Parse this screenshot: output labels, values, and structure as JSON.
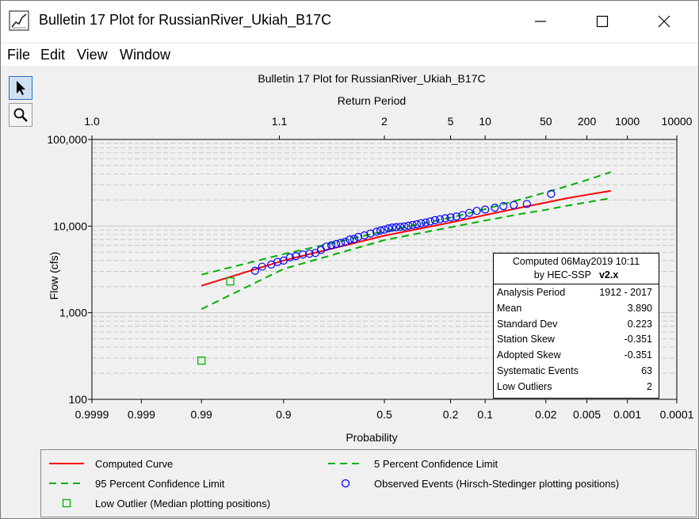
{
  "window": {
    "title": "Bulletin 17 Plot for RussianRiver_Ukiah_B17C",
    "minimize_glyph": "—",
    "maximize_glyph": "☐",
    "close_glyph": "✕"
  },
  "menu": [
    "File",
    "Edit",
    "View",
    "Window"
  ],
  "toolbar": [
    {
      "name": "pointer-tool",
      "icon": "arrow-cursor-icon",
      "active": true
    },
    {
      "name": "zoom-tool",
      "icon": "magnifier-icon",
      "active": false
    }
  ],
  "colors": {
    "computed": "#ff0000",
    "confidence": "#00b000",
    "observed": "#0000ff",
    "outlier": "#00b000",
    "grid": "#c8c8c8"
  },
  "stats_box": {
    "header_line1": "Computed 06May2019 10:11",
    "header_line2": "by HEC-SSP",
    "version": "v2.x",
    "rows": [
      {
        "label": "Analysis Period",
        "value": "1912 - 2017"
      },
      {
        "label": "Mean",
        "value": "3.890"
      },
      {
        "label": "Standard Dev",
        "value": "0.223"
      },
      {
        "label": "Station Skew",
        "value": "-0.351"
      },
      {
        "label": "Adopted Skew",
        "value": "-0.351"
      },
      {
        "label": "Systematic Events",
        "value": "63"
      },
      {
        "label": "Low Outliers",
        "value": "2"
      }
    ]
  },
  "legend": [
    {
      "label": "Computed Curve",
      "style": "solid",
      "color": "#ff0000"
    },
    {
      "label": "5 Percent Confidence Limit",
      "style": "dashed",
      "color": "#00b000"
    },
    {
      "label": "95 Percent Confidence Limit",
      "style": "dashed",
      "color": "#00b000"
    },
    {
      "label": "Observed Events (Hirsch-Stedinger plotting positions)",
      "style": "circle",
      "color": "#0000ff"
    },
    {
      "label": "Low Outlier (Median plotting positions)",
      "style": "square",
      "color": "#00b000"
    }
  ],
  "chart_data": {
    "type": "scatter",
    "title": "Bulletin 17 Plot for RussianRiver_Ukiah_B17C",
    "top_axis_label": "Return Period",
    "xlabel": "Probability",
    "ylabel": "Flow (cfs)",
    "x_scale": "normal-probability (exceedance, reversed)",
    "y_scale": "log",
    "xlim": [
      0.9999,
      0.0001
    ],
    "ylim": [
      100,
      100000
    ],
    "x_ticks": [
      {
        "p": 0.9999,
        "label": "0.9999"
      },
      {
        "p": 0.999,
        "label": "0.999"
      },
      {
        "p": 0.99,
        "label": "0.99"
      },
      {
        "p": 0.9,
        "label": "0.9"
      },
      {
        "p": 0.5,
        "label": "0.5"
      },
      {
        "p": 0.2,
        "label": "0.2"
      },
      {
        "p": 0.1,
        "label": "0.1"
      },
      {
        "p": 0.02,
        "label": "0.02"
      },
      {
        "p": 0.005,
        "label": "0.005"
      },
      {
        "p": 0.001,
        "label": "0.001"
      },
      {
        "p": 0.0001,
        "label": "0.0001"
      }
    ],
    "top_ticks": [
      {
        "T": 1.0,
        "label": "1.0",
        "p": 0.9999
      },
      {
        "T": 1.1,
        "label": "1.1",
        "p": 0.9091
      },
      {
        "T": 2,
        "label": "2",
        "p": 0.5
      },
      {
        "T": 5,
        "label": "5",
        "p": 0.2
      },
      {
        "T": 10,
        "label": "10",
        "p": 0.1
      },
      {
        "T": 50,
        "label": "50",
        "p": 0.02
      },
      {
        "T": 200,
        "label": "200",
        "p": 0.005
      },
      {
        "T": 1000,
        "label": "1000",
        "p": 0.001
      },
      {
        "T": 10000,
        "label": "10000",
        "p": 0.0001
      }
    ],
    "y_ticks": [
      {
        "v": 100,
        "label": "100"
      },
      {
        "v": 1000,
        "label": "1,000"
      },
      {
        "v": 10000,
        "label": "10,000"
      },
      {
        "v": 100000,
        "label": "100,000"
      }
    ],
    "grid": true,
    "series": [
      {
        "name": "Computed Curve",
        "kind": "line",
        "dash": false,
        "p": [
          0.99,
          0.9,
          0.5,
          0.2,
          0.1,
          0.04,
          0.02,
          0.01,
          0.005,
          0.002
        ],
        "y": [
          2050,
          4000,
          7760,
          11000,
          13400,
          16500,
          18700,
          21000,
          23000,
          25500
        ]
      },
      {
        "name": "5 Percent Confidence Limit",
        "kind": "line",
        "dash": true,
        "p": [
          0.99,
          0.9,
          0.5,
          0.2,
          0.1,
          0.04,
          0.02,
          0.01,
          0.005,
          0.002
        ],
        "y": [
          2750,
          4750,
          8700,
          12500,
          15700,
          20500,
          24500,
          29000,
          34000,
          42000
        ]
      },
      {
        "name": "95 Percent Confidence Limit",
        "kind": "line",
        "dash": true,
        "p": [
          0.99,
          0.9,
          0.5,
          0.2,
          0.1,
          0.04,
          0.02,
          0.01,
          0.005,
          0.002
        ],
        "y": [
          1100,
          3200,
          6900,
          9700,
          11600,
          13900,
          15400,
          17200,
          18800,
          21000
        ]
      },
      {
        "name": "Observed Events (Hirsch-Stedinger plotting positions)",
        "kind": "points",
        "marker": "circle",
        "p": [
          0.95,
          0.94,
          0.925,
          0.913,
          0.9,
          0.885,
          0.87,
          0.85,
          0.83,
          0.81,
          0.79,
          0.77,
          0.75,
          0.73,
          0.71,
          0.69,
          0.67,
          0.65,
          0.63,
          0.6,
          0.57,
          0.54,
          0.52,
          0.5,
          0.48,
          0.46,
          0.44,
          0.42,
          0.4,
          0.38,
          0.36,
          0.34,
          0.32,
          0.3,
          0.28,
          0.26,
          0.24,
          0.22,
          0.2,
          0.18,
          0.16,
          0.14,
          0.12,
          0.1,
          0.08,
          0.065,
          0.05,
          0.035,
          0.017
        ],
        "y": [
          3050,
          3400,
          3600,
          3850,
          4000,
          4350,
          4500,
          4700,
          4800,
          4900,
          5300,
          5800,
          6000,
          6200,
          6400,
          6600,
          7000,
          7100,
          7500,
          7800,
          8200,
          8600,
          8900,
          9100,
          9400,
          9600,
          9700,
          9800,
          9900,
          10100,
          10300,
          10500,
          10800,
          11000,
          11300,
          11700,
          12000,
          12300,
          12600,
          12900,
          13400,
          14200,
          15000,
          15500,
          16300,
          17000,
          17500,
          18000,
          23500
        ]
      },
      {
        "name": "Low Outlier (Median plotting positions)",
        "kind": "points",
        "marker": "square",
        "p": [
          0.99,
          0.975
        ],
        "y": [
          280,
          2300
        ]
      }
    ]
  }
}
